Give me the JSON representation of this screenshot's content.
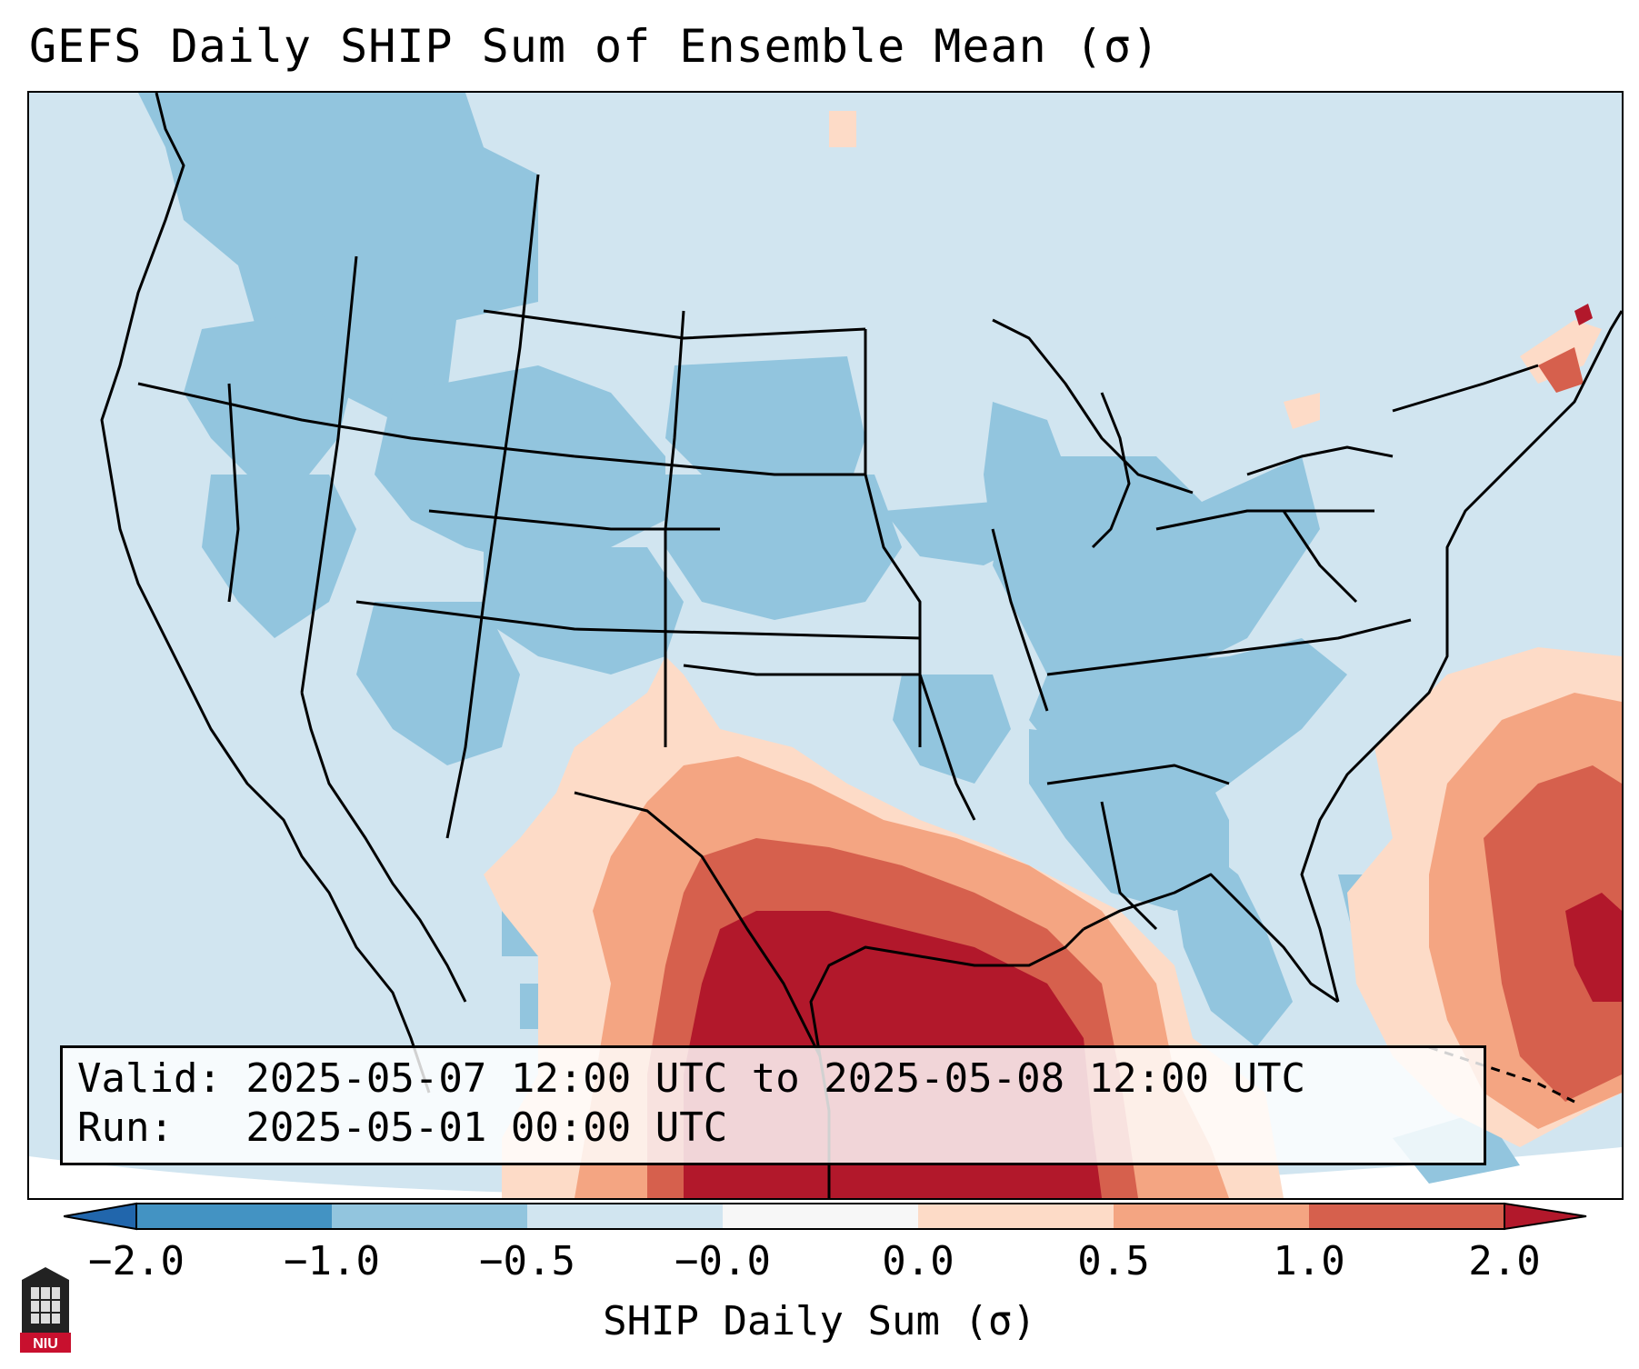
{
  "title": "GEFS Daily SHIP Sum of Ensemble Mean (σ)",
  "info": {
    "valid_line": "Valid: 2025-05-07 12:00 UTC to 2025-05-08 12:00 UTC",
    "run_line": "Run:   2025-05-01 00:00 UTC"
  },
  "colorbar": {
    "label": "SHIP Daily Sum (σ)",
    "ticks": [
      "−2.0",
      "−1.0",
      "−0.5",
      "−0.0",
      "0.0",
      "0.5",
      "1.0",
      "2.0"
    ],
    "colors": [
      "#4393c3",
      "#92c5de",
      "#d1e5f0",
      "#f7f7f7",
      "#fddbc7",
      "#f4a582",
      "#d6604d",
      "#b2182b"
    ],
    "extend": "both"
  },
  "map": {
    "region": "Continental United States",
    "colors": {
      "light_blue": "#d1e5f0",
      "mid_blue": "#92c5de",
      "peach": "#fddbc7",
      "salmon": "#f4a582",
      "orange_red": "#d6604d",
      "dark_red": "#b2182b",
      "outline": "#000000"
    }
  },
  "logo": {
    "text": "NIU"
  }
}
